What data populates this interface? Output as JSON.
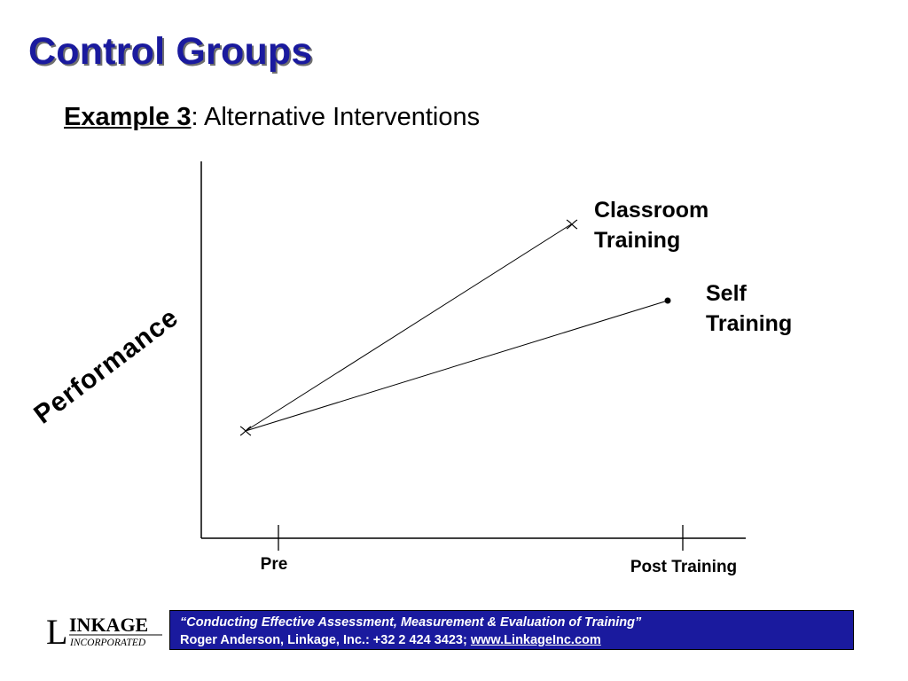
{
  "slide": {
    "title": "Control Groups",
    "subtitle_bold": "Example 3",
    "subtitle_rest": ": Alternative Interventions"
  },
  "diagram": {
    "y_axis_label": "Performance",
    "x_ticks": [
      "Pre",
      "Post Training"
    ],
    "lines": [
      {
        "label_line1": "Classroom",
        "label_line2": "Training",
        "start_marker": "x-mark",
        "end_marker": "x-mark"
      },
      {
        "label_line1": "Self",
        "label_line2": "Training",
        "start_marker": "x-mark",
        "end_marker": "dot"
      }
    ]
  },
  "footer": {
    "logo_letter": "L",
    "logo_word": "INKAGE",
    "logo_sub": "INCORPORATED",
    "quote": "“Conducting Effective Assessment, Measurement & Evaluation of Training”",
    "author": "Roger Anderson, Linkage, Inc.: +32 2 424 3423; ",
    "link": "www.LinkageInc.com"
  },
  "colors": {
    "title": "#1a1a9e",
    "footer_bg": "#1a1a9e"
  }
}
